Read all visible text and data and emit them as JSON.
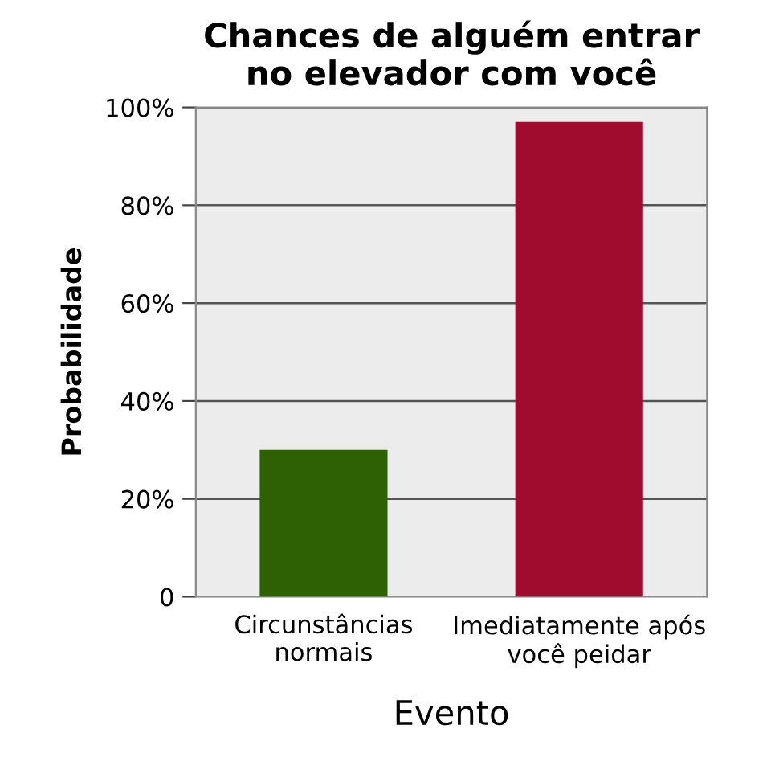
{
  "chart_data": {
    "type": "bar",
    "title": "Chances de alguém entrar no elevador com você",
    "xlabel": "Evento",
    "ylabel": "Probabilidade",
    "categories": [
      "Circunstâncias normais",
      "Imediatamente após você peidar"
    ],
    "values": [
      30,
      97
    ],
    "colors": [
      "#2e6103",
      "#a00c2e"
    ],
    "ylim": [
      0,
      100
    ],
    "yticks": [
      0,
      {
        "value": 20,
        "label": "20%"
      },
      {
        "value": 40,
        "label": "40%"
      },
      {
        "value": 60,
        "label": "60%"
      },
      {
        "value": 80,
        "label": "80%"
      },
      {
        "value": 100,
        "label": "100%"
      }
    ],
    "grid": "y",
    "legend": false
  }
}
